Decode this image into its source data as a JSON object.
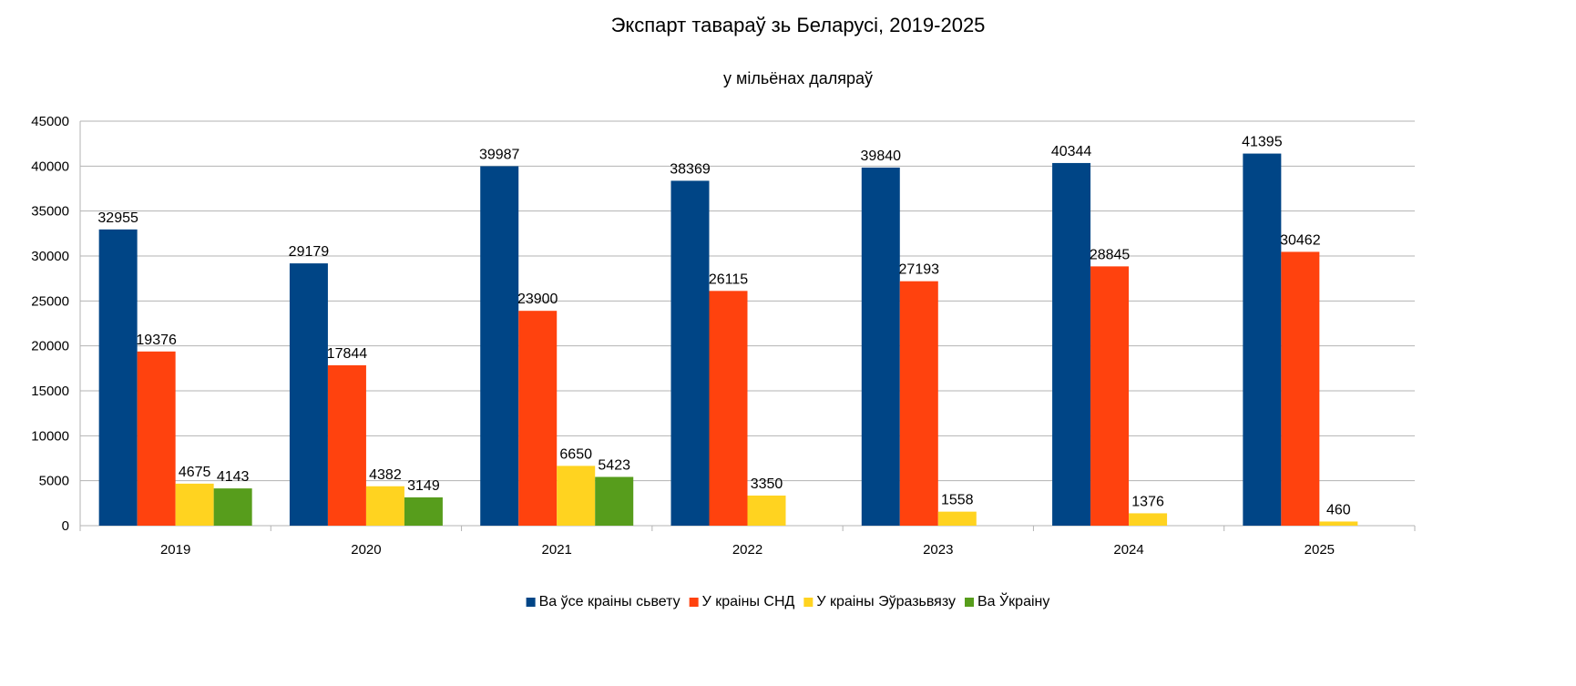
{
  "chart_data": {
    "type": "bar",
    "title": "Экспарт тавараў зь Беларусі, 2019-2025",
    "subtitle": "у мільёнах даляраў",
    "xlabel": "",
    "ylabel": "",
    "ylim": [
      0,
      45000
    ],
    "yticks": [
      0,
      5000,
      10000,
      15000,
      20000,
      25000,
      30000,
      35000,
      40000,
      45000
    ],
    "grid": true,
    "legend_position": "bottom",
    "categories": [
      "2019",
      "2020",
      "2021",
      "2022",
      "2023",
      "2024",
      "2025"
    ],
    "series": [
      {
        "name": "Ва ўсе краіны сьвету",
        "color": "#004586",
        "values": [
          32955,
          29179,
          39987,
          38369,
          39840,
          40344,
          41395
        ]
      },
      {
        "name": "У краіны СНД",
        "color": "#ff420e",
        "values": [
          19376,
          17844,
          23900,
          26115,
          27193,
          28845,
          30462
        ]
      },
      {
        "name": "У краіны Эўразьвязу",
        "color": "#ffd320",
        "values": [
          4675,
          4382,
          6650,
          3350,
          1558,
          1376,
          460
        ]
      },
      {
        "name": "Ва Ўкраіну",
        "color": "#579d1c",
        "values": [
          4143,
          3149,
          5423,
          null,
          null,
          null,
          null
        ]
      }
    ]
  }
}
